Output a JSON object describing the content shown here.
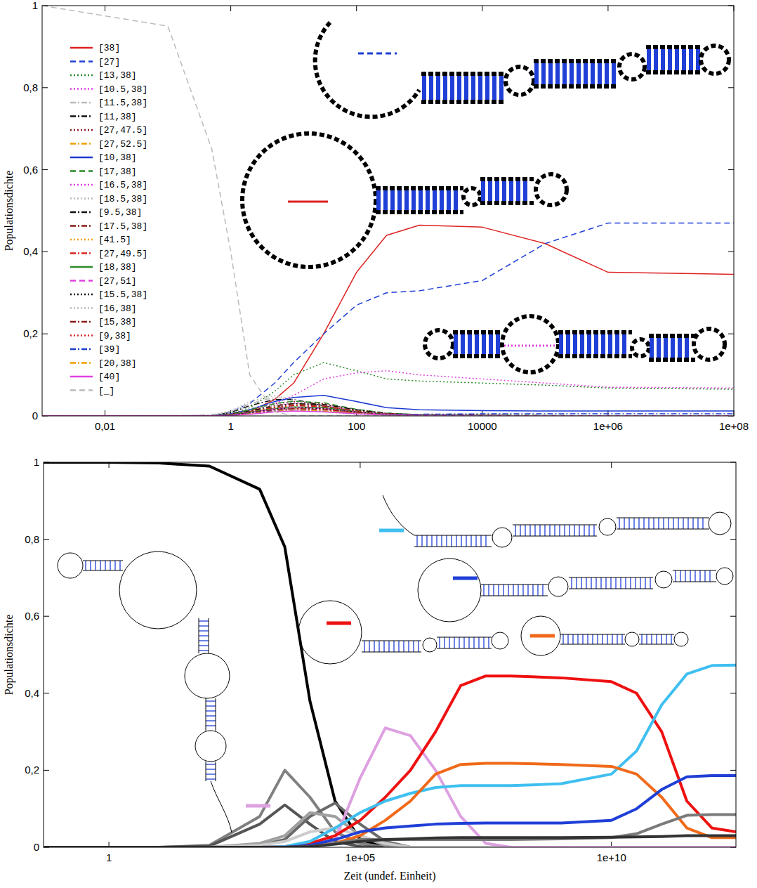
{
  "chart_data": [
    {
      "type": "line",
      "y_label": "Populationsdichte",
      "log": "x",
      "legend": "upper left",
      "xlim": [
        0.001,
        100000000
      ],
      "ylim": [
        0,
        1
      ],
      "xticks": [
        {
          "value": 0.01,
          "label": "0,01"
        },
        1,
        100,
        10000,
        {
          "value": 1000000,
          "label": "1e+06"
        },
        {
          "value": 100000000,
          "label": "1e+08"
        }
      ],
      "yticks": [
        0,
        {
          "value": 0.2,
          "label": "0,2"
        },
        {
          "value": 0.4,
          "label": "0,4"
        },
        {
          "value": 0.6,
          "label": "0,6"
        },
        {
          "value": 0.8,
          "label": "0,8"
        },
        1
      ],
      "x": [
        0.001,
        0.1,
        0.5,
        1,
        2,
        5,
        10,
        30,
        100,
        300,
        1000,
        10000,
        100000,
        1000000,
        100000000
      ],
      "series": [
        {
          "name": "[38]",
          "color": "#dd2222",
          "line_style": "solid",
          "values": [
            0,
            0,
            0,
            0.003,
            0.01,
            0.04,
            0.08,
            0.2,
            0.35,
            0.44,
            0.465,
            0.46,
            0.42,
            0.35,
            0.345
          ]
        },
        {
          "name": "[27]",
          "color": "#1f3fd6",
          "line_style": "dashed",
          "values": [
            0,
            0,
            0,
            0.01,
            0.03,
            0.08,
            0.13,
            0.2,
            0.27,
            0.3,
            0.305,
            0.33,
            0.42,
            0.47,
            0.47
          ]
        },
        {
          "name": "[13,38]",
          "color": "#2a8a2a",
          "line_style": "dotted",
          "values": [
            0,
            0,
            0,
            0.005,
            0.02,
            0.06,
            0.1,
            0.13,
            0.11,
            0.09,
            0.085,
            0.08,
            0.075,
            0.068,
            0.065
          ]
        },
        {
          "name": "[10.5,38]",
          "color": "#e040e0",
          "line_style": "dotted",
          "values": [
            0,
            0,
            0,
            0.002,
            0.008,
            0.03,
            0.05,
            0.09,
            0.105,
            0.11,
            0.1,
            0.09,
            0.08,
            0.07,
            0.068
          ]
        },
        {
          "name": "[11.5,38]",
          "color": "#bbbbbb",
          "line_style": "dashdot",
          "values": [
            0,
            0,
            0.002,
            0.01,
            0.03,
            0.045,
            0.04,
            0.02,
            0.008,
            0.003,
            0.001,
            0,
            0,
            0,
            0
          ]
        },
        {
          "name": "[11,38]",
          "color": "#111111",
          "line_style": "dashdot",
          "values": [
            0,
            0,
            0.001,
            0.008,
            0.025,
            0.04,
            0.04,
            0.025,
            0.01,
            0.004,
            0.002,
            0.001,
            0,
            0,
            0
          ]
        },
        {
          "name": "[27,47.5]",
          "color": "#8b1a1a",
          "line_style": "dotted",
          "values": [
            0,
            0,
            0,
            0.005,
            0.015,
            0.03,
            0.035,
            0.03,
            0.015,
            0.006,
            0.003,
            0.002,
            0.001,
            0,
            0
          ]
        },
        {
          "name": "[27,52.5]",
          "color": "#f0a000",
          "line_style": "dashdot",
          "values": [
            0,
            0,
            0,
            0.004,
            0.012,
            0.025,
            0.03,
            0.025,
            0.012,
            0.005,
            0.002,
            0.001,
            0,
            0,
            0
          ]
        },
        {
          "name": "[10,38]",
          "color": "#1a3ad0",
          "line_style": "solid",
          "values": [
            0,
            0,
            0,
            0.005,
            0.015,
            0.035,
            0.045,
            0.05,
            0.035,
            0.02,
            0.015,
            0.013,
            0.012,
            0.012,
            0.012
          ]
        },
        {
          "name": "[17,38]",
          "color": "#2a8a2a",
          "line_style": "dashed",
          "values": [
            0,
            0,
            0,
            0.005,
            0.015,
            0.03,
            0.036,
            0.032,
            0.016,
            0.007,
            0.003,
            0.002,
            0.001,
            0,
            0
          ]
        },
        {
          "name": "[16.5,38]",
          "color": "#e040e0",
          "line_style": "dotted",
          "values": [
            0,
            0,
            0,
            0.004,
            0.012,
            0.026,
            0.031,
            0.026,
            0.012,
            0.005,
            0.002,
            0.001,
            0,
            0,
            0
          ]
        },
        {
          "name": "[18.5,38]",
          "color": "#bbbbbb",
          "line_style": "dotted",
          "values": [
            0,
            0,
            0.003,
            0.012,
            0.035,
            0.05,
            0.04,
            0.02,
            0.008,
            0.003,
            0.001,
            0,
            0,
            0,
            0
          ]
        },
        {
          "name": "[9.5,38]",
          "color": "#111111",
          "line_style": "dashdot",
          "values": [
            0,
            0,
            0,
            0.004,
            0.012,
            0.025,
            0.03,
            0.028,
            0.015,
            0.006,
            0.003,
            0.001,
            0,
            0,
            0
          ]
        },
        {
          "name": "[17.5,38]",
          "color": "#8b1a1a",
          "line_style": "dashdot",
          "values": [
            0,
            0,
            0,
            0.003,
            0.01,
            0.022,
            0.027,
            0.024,
            0.012,
            0.005,
            0.002,
            0.001,
            0,
            0,
            0
          ]
        },
        {
          "name": "[41.5]",
          "color": "#f0a000",
          "line_style": "dotted",
          "values": [
            0,
            0,
            0,
            0.003,
            0.01,
            0.02,
            0.022,
            0.015,
            0.006,
            0.002,
            0.001,
            0,
            0,
            0,
            0
          ]
        },
        {
          "name": "[27,49.5]",
          "color": "#dd2222",
          "line_style": "dashdot",
          "values": [
            0,
            0,
            0,
            0.003,
            0.009,
            0.02,
            0.025,
            0.022,
            0.011,
            0.005,
            0.002,
            0.001,
            0,
            0,
            0
          ]
        },
        {
          "name": "[18,38]",
          "color": "#2a8a2a",
          "line_style": "solid",
          "values": [
            0,
            0,
            0,
            0.003,
            0.009,
            0.018,
            0.022,
            0.02,
            0.01,
            0.004,
            0.002,
            0.001,
            0,
            0,
            0
          ]
        },
        {
          "name": "[27,51]",
          "color": "#e040e0",
          "line_style": "dashed",
          "values": [
            0,
            0,
            0,
            0.002,
            0.008,
            0.017,
            0.021,
            0.018,
            0.009,
            0.004,
            0.002,
            0.001,
            0,
            0,
            0
          ]
        },
        {
          "name": "[15.5,38]",
          "color": "#111111",
          "line_style": "dotted",
          "values": [
            0,
            0,
            0,
            0.002,
            0.008,
            0.016,
            0.02,
            0.018,
            0.009,
            0.004,
            0.002,
            0.001,
            0,
            0,
            0
          ]
        },
        {
          "name": "[16,38]",
          "color": "#bbbbbb",
          "line_style": "dotted",
          "values": [
            0,
            0,
            0.002,
            0.008,
            0.02,
            0.025,
            0.02,
            0.01,
            0.004,
            0.002,
            0.001,
            0,
            0,
            0,
            0
          ]
        },
        {
          "name": "[15,38]",
          "color": "#8b1a1a",
          "line_style": "dashdot",
          "values": [
            0,
            0,
            0,
            0.002,
            0.007,
            0.015,
            0.018,
            0.016,
            0.008,
            0.003,
            0.001,
            0,
            0,
            0,
            0
          ]
        },
        {
          "name": "[9,38]",
          "color": "#dd2222",
          "line_style": "dotted",
          "values": [
            0,
            0,
            0,
            0.002,
            0.006,
            0.014,
            0.017,
            0.015,
            0.007,
            0.003,
            0.001,
            0,
            0,
            0,
            0
          ]
        },
        {
          "name": "[39]",
          "color": "#1a3ad0",
          "line_style": "dashdot",
          "values": [
            0,
            0,
            0,
            0.002,
            0.006,
            0.012,
            0.015,
            0.012,
            0.006,
            0.003,
            0.004,
            0.005,
            0.005,
            0.005,
            0.005
          ]
        },
        {
          "name": "[20,38]",
          "color": "#f0a000",
          "line_style": "dashdot",
          "values": [
            0,
            0,
            0,
            0.001,
            0.005,
            0.011,
            0.014,
            0.012,
            0.006,
            0.002,
            0.001,
            0,
            0,
            0,
            0
          ]
        },
        {
          "name": "[40]",
          "color": "#e040e0",
          "line_style": "solid",
          "values": [
            0,
            0,
            0,
            0.001,
            0.004,
            0.01,
            0.012,
            0.01,
            0.005,
            0.002,
            0.001,
            0,
            0,
            0,
            0
          ]
        },
        {
          "name": "[_]",
          "color": "#bbbbbb",
          "line_style": "dashed",
          "values": [
            1,
            0.95,
            0.65,
            0.4,
            0.1,
            0.01,
            0,
            0,
            0,
            0,
            0,
            0,
            0,
            0,
            0
          ]
        }
      ]
    },
    {
      "type": "line",
      "y_label": "Populationsdichte",
      "x_label": "Zeit (undef. Einheit)",
      "log": "x",
      "xlim": [
        0.05,
        3000000000000
      ],
      "ylim": [
        0,
        1
      ],
      "xticks": [
        1,
        {
          "value": 100000,
          "label": "1e+05"
        },
        {
          "value": 10000000000,
          "label": "1e+10"
        }
      ],
      "yticks": [
        0,
        {
          "value": 0.2,
          "label": "0,2"
        },
        {
          "value": 0.4,
          "label": "0,4"
        },
        {
          "value": 0.6,
          "label": "0,6"
        },
        {
          "value": 0.8,
          "label": "0,8"
        },
        1
      ],
      "x": [
        0.05,
        1,
        10,
        100,
        1000,
        3162,
        10000,
        31623,
        100000,
        316228,
        1000000,
        3162278,
        10000000,
        31622777,
        100000000,
        1000000000,
        10000000000,
        31622776602,
        100000000000,
        316227766017,
        1000000000000,
        3000000000000
      ],
      "series": [
        {
          "color": "#000000",
          "line_style": "solid",
          "values": [
            1,
            1,
            0.998,
            0.99,
            0.93,
            0.78,
            0.38,
            0.12,
            0.02,
            0,
            0,
            0,
            0,
            0,
            0,
            0,
            0,
            0,
            0,
            0,
            0,
            0
          ]
        },
        {
          "color": "#808080",
          "line_style": "solid",
          "values": [
            0,
            0,
            0,
            0.005,
            0.08,
            0.2,
            0.13,
            0.04,
            0.01,
            0,
            0,
            0,
            0,
            0,
            0,
            0,
            0,
            0,
            0,
            0,
            0,
            0
          ]
        },
        {
          "color": "#555555",
          "line_style": "solid",
          "values": [
            0,
            0,
            0,
            0.003,
            0.06,
            0.11,
            0.06,
            0.015,
            0.002,
            0,
            0,
            0,
            0,
            0,
            0,
            0,
            0,
            0,
            0,
            0,
            0,
            0
          ]
        },
        {
          "color": "#6a6a6a",
          "line_style": "solid",
          "values": [
            0,
            0,
            0,
            0,
            0.005,
            0.02,
            0.08,
            0.115,
            0.06,
            0.015,
            0,
            0,
            0,
            0,
            0,
            0,
            0,
            0,
            0,
            0,
            0,
            0
          ]
        },
        {
          "color": "#a0a0a0",
          "line_style": "solid",
          "values": [
            0,
            0,
            0,
            0,
            0.01,
            0.03,
            0.09,
            0.08,
            0.03,
            0.005,
            0,
            0,
            0,
            0,
            0,
            0,
            0,
            0,
            0,
            0,
            0,
            0
          ]
        },
        {
          "color": "#cccccc",
          "line_style": "solid",
          "values": [
            0,
            0,
            0,
            0,
            0.005,
            0.015,
            0.04,
            0.05,
            0.03,
            0.01,
            0,
            0,
            0,
            0,
            0,
            0,
            0,
            0,
            0,
            0,
            0,
            0
          ]
        },
        {
          "color": "#dda0e0",
          "line_style": "solid",
          "values": [
            0,
            0,
            0,
            0,
            0,
            0,
            0.002,
            0.02,
            0.18,
            0.31,
            0.29,
            0.2,
            0.08,
            0.01,
            0,
            0,
            0,
            0,
            0,
            0,
            0,
            0
          ]
        },
        {
          "color": "#ee1111",
          "line_style": "solid",
          "values": [
            0,
            0,
            0,
            0,
            0,
            0.002,
            0.01,
            0.03,
            0.07,
            0.13,
            0.2,
            0.3,
            0.42,
            0.445,
            0.445,
            0.44,
            0.43,
            0.4,
            0.3,
            0.12,
            0.05,
            0.04
          ]
        },
        {
          "color": "#3fbff0",
          "line_style": "solid",
          "values": [
            0,
            0,
            0,
            0,
            0,
            0.002,
            0.015,
            0.05,
            0.09,
            0.12,
            0.14,
            0.155,
            0.16,
            0.16,
            0.16,
            0.165,
            0.19,
            0.25,
            0.37,
            0.45,
            0.472,
            0.473
          ]
        },
        {
          "color": "#f06a1a",
          "line_style": "solid",
          "values": [
            0,
            0,
            0,
            0,
            0,
            0,
            0.003,
            0.01,
            0.03,
            0.07,
            0.12,
            0.19,
            0.215,
            0.218,
            0.218,
            0.215,
            0.21,
            0.19,
            0.13,
            0.05,
            0.025,
            0.025
          ]
        },
        {
          "color": "#1f3fd6",
          "line_style": "solid",
          "values": [
            0,
            0,
            0,
            0,
            0,
            0,
            0.005,
            0.02,
            0.04,
            0.05,
            0.055,
            0.06,
            0.062,
            0.063,
            0.063,
            0.063,
            0.07,
            0.1,
            0.15,
            0.183,
            0.186,
            0.186
          ]
        },
        {
          "color": "#7a7a7a",
          "line_style": "solid",
          "values": [
            0,
            0,
            0,
            0,
            0,
            0,
            0.002,
            0.01,
            0.02,
            0.02,
            0.02,
            0.02,
            0.02,
            0.02,
            0.02,
            0.022,
            0.025,
            0.035,
            0.06,
            0.083,
            0.085,
            0.085
          ]
        },
        {
          "color": "#333333",
          "line_style": "solid",
          "values": [
            0,
            0,
            0,
            0,
            0,
            0,
            0.002,
            0.008,
            0.015,
            0.02,
            0.022,
            0.024,
            0.025,
            0.025,
            0.025,
            0.025,
            0.026,
            0.027,
            0.028,
            0.03,
            0.03,
            0.03
          ]
        }
      ]
    }
  ]
}
